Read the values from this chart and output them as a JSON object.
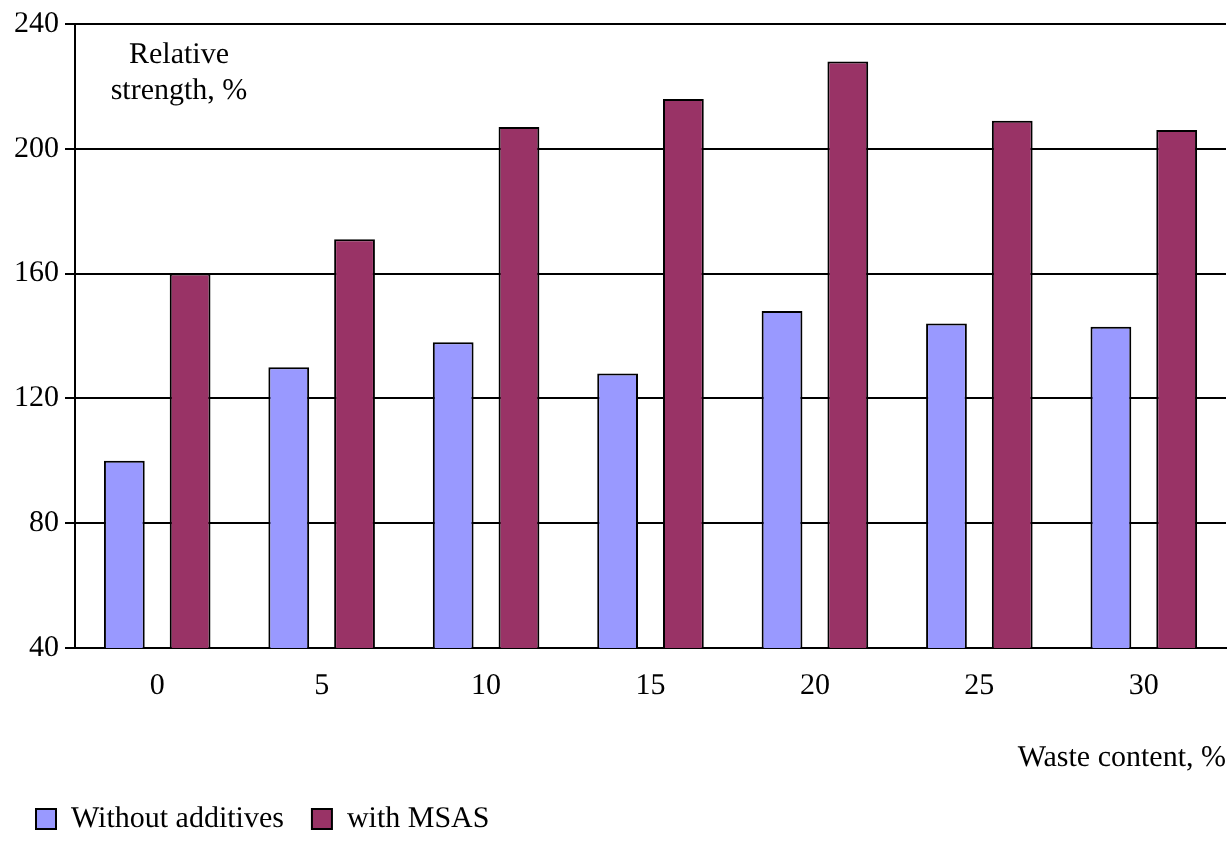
{
  "chart_data": {
    "type": "bar",
    "ylabel": "Relative strength, %",
    "xlabel": "Waste content, %",
    "categories": [
      "0",
      "5",
      "10",
      "15",
      "20",
      "25",
      "30"
    ],
    "series": [
      {
        "name": "Without additives",
        "color": "#9999ff",
        "values": [
          100,
          130,
          138,
          128,
          148,
          144,
          143
        ]
      },
      {
        "name": "with MSAS",
        "color": "#993366",
        "values": [
          160,
          171,
          207,
          216,
          228,
          209,
          206
        ]
      }
    ],
    "ylim": [
      40,
      240
    ],
    "yticks": [
      40,
      80,
      120,
      160,
      200,
      240
    ],
    "grid": "y",
    "legend": "bottom left"
  }
}
